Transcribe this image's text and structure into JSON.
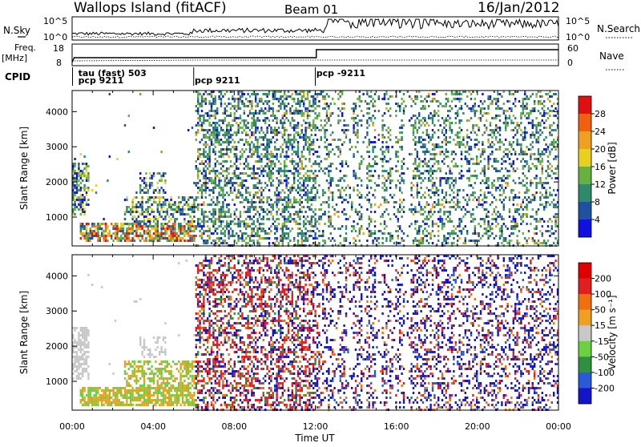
{
  "header": {
    "station": "Wallops Island (fitACF)",
    "beam": "Beam 01",
    "date": "16/Jan/2012"
  },
  "strip_labels": {
    "nsky": "N.Sky",
    "nsearch": "N.Search",
    "freq_line1": "Freq.",
    "freq_line2": "[MHz]",
    "nave": "Nave",
    "cpid": "CPID",
    "left_axis_top": "10^5",
    "left_axis_bottom": "10^0",
    "right_axis_top": "10^5",
    "right_axis_bottom": "10^0",
    "freq_ticks": [
      "18",
      "8"
    ],
    "nave_ticks": [
      "60",
      "0"
    ]
  },
  "cpid_labels": [
    {
      "text": "tau (fast) 503",
      "at_hour": 0.3
    },
    {
      "text": "pcp 9211",
      "at_hour": 0.3
    },
    {
      "text": "pcp 9211",
      "at_hour": 6.05
    },
    {
      "text": "pcp -9211",
      "at_hour": 12.05
    }
  ],
  "chart_data": [
    {
      "type": "heatmap",
      "name": "power",
      "ylabel": "Slant Range [km]",
      "xlabel": "Time UT",
      "x_ticks": [
        "00:00",
        "04:00",
        "08:00",
        "12:00",
        "16:00",
        "20:00",
        "00:00"
      ],
      "x_range_hours": [
        0,
        24
      ],
      "y_range_km": [
        180,
        4600
      ],
      "y_ticks": [
        "1000",
        "2000",
        "3000",
        "4000"
      ],
      "colorbar": {
        "label": "Power [dB]",
        "ticks": [
          "4",
          "8",
          "12",
          "16",
          "20",
          "24",
          "28"
        ],
        "colors": [
          "#1010e0",
          "#2050a0",
          "#2e8a6a",
          "#68b040",
          "#e8d020",
          "#f0a020",
          "#f06010",
          "#e01010"
        ]
      }
    },
    {
      "type": "heatmap",
      "name": "velocity",
      "ylabel": "Slant Range [km]",
      "xlabel": "Time UT",
      "x_ticks": [
        "00:00",
        "04:00",
        "08:00",
        "12:00",
        "16:00",
        "20:00",
        "00:00"
      ],
      "x_range_hours": [
        0,
        24
      ],
      "y_range_km": [
        180,
        4600
      ],
      "y_ticks": [
        "1000",
        "2000",
        "3000",
        "4000"
      ],
      "colorbar": {
        "label": "Velocity [m s⁻¹]",
        "ticks": [
          "200",
          "100",
          "50",
          "15",
          "-15",
          "-50",
          "-100",
          "-200"
        ],
        "colors": [
          "#1414c8",
          "#2a5ad8",
          "#2e9040",
          "#6cd040",
          "#c8c8c8",
          "#f0a020",
          "#f07010",
          "#e02020",
          "#e00000"
        ]
      }
    }
  ],
  "time_axis_label": "Time UT"
}
